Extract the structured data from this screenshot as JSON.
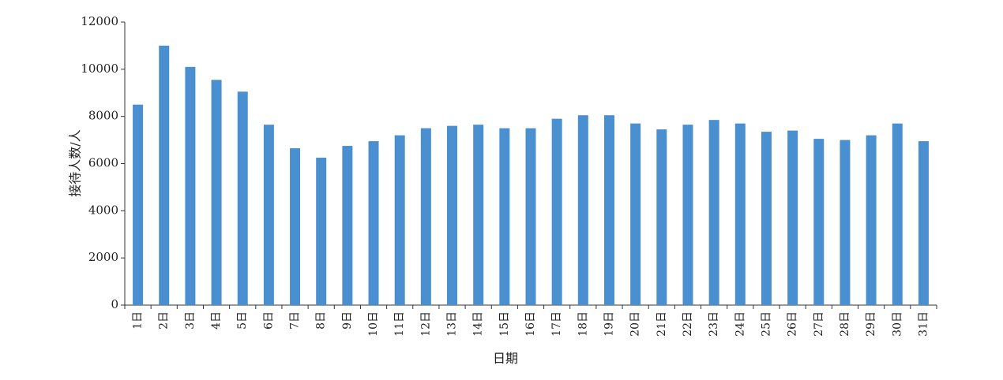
{
  "chart_data": {
    "type": "bar",
    "xlabel": "日期",
    "ylabel": "接待人数/人",
    "ylim": [
      0,
      12000
    ],
    "yticks": [
      0,
      2000,
      4000,
      6000,
      8000,
      10000,
      12000
    ],
    "grid": false,
    "bar_color": "#4a90d0",
    "axis_color": "#333333",
    "categories": [
      "1日",
      "2日",
      "3日",
      "4日",
      "5日",
      "6日",
      "7日",
      "8日",
      "9日",
      "10日",
      "11日",
      "12日",
      "13日",
      "14日",
      "15日",
      "16日",
      "17日",
      "18日",
      "19日",
      "20日",
      "21日",
      "22日",
      "23日",
      "24日",
      "25日",
      "26日",
      "27日",
      "28日",
      "29日",
      "30日",
      "31日"
    ],
    "values": [
      8500,
      11000,
      10100,
      9550,
      9050,
      7650,
      6650,
      6250,
      6750,
      6950,
      7200,
      7500,
      7600,
      7650,
      7500,
      7500,
      7900,
      8050,
      8050,
      7700,
      7450,
      7650,
      7850,
      7700,
      7350,
      7400,
      7050,
      7000,
      7200,
      7700,
      6950
    ]
  }
}
